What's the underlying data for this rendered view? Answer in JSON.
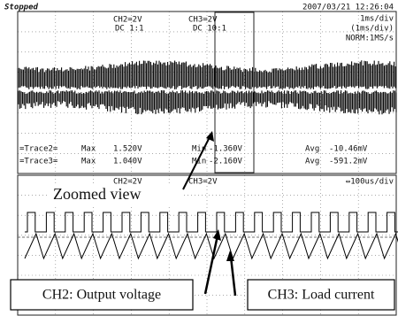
{
  "header": {
    "status": "Stopped",
    "timestamp": "2007/03/21 12:26:04"
  },
  "upper_panel": {
    "ch2": {
      "label": "CH2=2V",
      "coupling": "DC 1:1"
    },
    "ch3": {
      "label": "CH3=2V",
      "coupling": "DC 10:1"
    },
    "timebase": [
      "1ms/div",
      "(1ms/div)",
      "NORM:1MS/s"
    ]
  },
  "measurements": [
    {
      "trace": "=Trace2=",
      "max_label": "Max",
      "max": "1.520V",
      "min_label": "Min",
      "min": "-1.360V",
      "avg_label": "Avg",
      "avg": "-10.46mV"
    },
    {
      "trace": "=Trace3=",
      "max_label": "Max",
      "max": "1.040V",
      "min_label": "Min",
      "min": "-2.160V",
      "avg_label": "Avg",
      "avg": "-591.2mV"
    }
  ],
  "lower_panel": {
    "ch2": "CH2=2V",
    "ch3": "CH3=2V",
    "timebase": "↔100us/div"
  },
  "annotations": {
    "zoom": "Zoomed view",
    "ch2": "CH2: Output voltage",
    "ch3": "CH3: Load current"
  }
}
